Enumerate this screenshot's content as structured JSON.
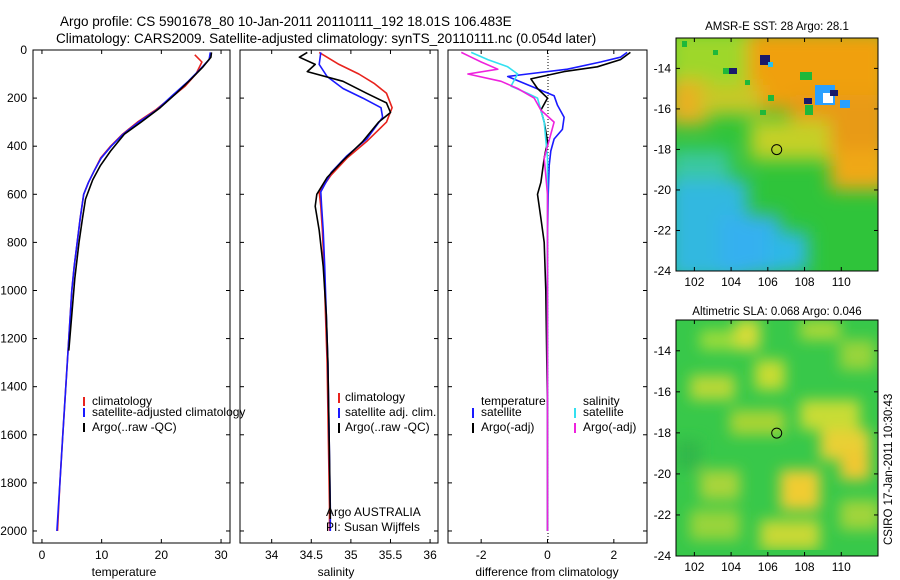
{
  "figure": {
    "title_line1": "Argo profile: CS 5901678_80 10-Jan-2011 20110111_192 18.01S 106.483E",
    "title_line2": "Climatology: CARS2009. Satellite-adjusted climatology: synTS_20110111.nc (0.054d later)",
    "side_label": "CSIRO 17-Jan-2011 10:30:43",
    "argo_credit_line1": "Argo AUSTRALIA",
    "argo_credit_line2": "PI: Susan Wijffels"
  },
  "colors": {
    "climatology": "#e8231d",
    "satellite": "#1a1aff",
    "argo": "#000000",
    "sal_satellite": "#33e0f0",
    "sal_argo": "#ee22dd"
  },
  "chart_data": [
    {
      "type": "line",
      "id": "temperature",
      "xlabel": "temperature",
      "xlim": [
        -1.5,
        31.5
      ],
      "xticks": [
        0,
        10,
        20,
        30
      ],
      "ylim": [
        2050,
        0
      ],
      "yticks": [
        0,
        200,
        400,
        600,
        800,
        1000,
        1200,
        1400,
        1600,
        1800,
        2000
      ],
      "legend": [
        "climatology",
        "satellite-adjusted climatology",
        "Argo(..raw -QC)"
      ],
      "legend_placement": "lower-right",
      "series": [
        {
          "name": "climatology",
          "color_key": "climatology",
          "points": [
            [
              25.6,
              20
            ],
            [
              26.8,
              50
            ],
            [
              25.8,
              100
            ],
            [
              24.0,
              150
            ],
            [
              21.5,
              200
            ],
            [
              19.0,
              250
            ],
            [
              16.0,
              300
            ],
            [
              13.5,
              350
            ],
            [
              11.5,
              400
            ],
            [
              9.8,
              450
            ],
            [
              8.8,
              500
            ],
            [
              7.8,
              550
            ],
            [
              7.0,
              600
            ],
            [
              6.4,
              700
            ],
            [
              5.9,
              800
            ],
            [
              5.4,
              900
            ],
            [
              5.0,
              1000
            ],
            [
              4.5,
              1200
            ],
            [
              4.0,
              1400
            ],
            [
              3.5,
              1600
            ],
            [
              3.0,
              1800
            ],
            [
              2.6,
              2000
            ]
          ]
        },
        {
          "name": "satellite-adjusted climatology",
          "color_key": "satellite",
          "points": [
            [
              28.2,
              10
            ],
            [
              28.0,
              40
            ],
            [
              26.5,
              80
            ],
            [
              24.5,
              130
            ],
            [
              21.8,
              190
            ],
            [
              19.2,
              250
            ],
            [
              16.2,
              300
            ],
            [
              13.6,
              350
            ],
            [
              11.6,
              400
            ],
            [
              9.9,
              450
            ],
            [
              8.8,
              500
            ],
            [
              7.8,
              550
            ],
            [
              7.0,
              600
            ],
            [
              6.4,
              700
            ],
            [
              5.9,
              800
            ],
            [
              5.4,
              900
            ],
            [
              5.0,
              1000
            ],
            [
              4.5,
              1200
            ],
            [
              4.0,
              1400
            ],
            [
              3.5,
              1600
            ],
            [
              3.0,
              1800
            ],
            [
              2.5,
              2000
            ]
          ]
        },
        {
          "name": "Argo(..raw -QC)",
          "color_key": "argo",
          "points": [
            [
              28.4,
              10
            ],
            [
              28.3,
              30
            ],
            [
              27.0,
              70
            ],
            [
              25.0,
              120
            ],
            [
              22.5,
              180
            ],
            [
              19.8,
              240
            ],
            [
              16.6,
              300
            ],
            [
              13.8,
              350
            ],
            [
              11.5,
              420
            ],
            [
              9.8,
              480
            ],
            [
              8.5,
              540
            ],
            [
              7.3,
              620
            ],
            [
              6.8,
              700
            ],
            [
              6.2,
              800
            ],
            [
              5.5,
              950
            ],
            [
              5.0,
              1100
            ],
            [
              4.5,
              1250
            ]
          ]
        }
      ]
    },
    {
      "type": "line",
      "id": "salinity",
      "xlabel": "salinity",
      "xlim": [
        33.6,
        36.1
      ],
      "xticks": [
        34,
        34.5,
        35,
        35.5,
        36
      ],
      "ylim": [
        2050,
        0
      ],
      "legend": [
        "climatology",
        "satellite adj. clim.",
        "Argo(..raw -QC)"
      ],
      "legend_placement": "lower-right",
      "series": [
        {
          "name": "climatology",
          "color_key": "climatology",
          "points": [
            [
              34.6,
              10
            ],
            [
              34.85,
              60
            ],
            [
              35.1,
              100
            ],
            [
              35.3,
              140
            ],
            [
              35.45,
              180
            ],
            [
              35.52,
              240
            ],
            [
              35.45,
              300
            ],
            [
              35.2,
              380
            ],
            [
              34.95,
              450
            ],
            [
              34.75,
              520
            ],
            [
              34.6,
              590
            ],
            [
              34.62,
              650
            ],
            [
              34.64,
              750
            ],
            [
              34.66,
              900
            ],
            [
              34.68,
              1100
            ],
            [
              34.7,
              1300
            ],
            [
              34.71,
              1500
            ],
            [
              34.72,
              1700
            ],
            [
              34.73,
              1900
            ],
            [
              34.73,
              2000
            ]
          ]
        },
        {
          "name": "satellite adj. clim.",
          "color_key": "satellite",
          "points": [
            [
              34.62,
              10
            ],
            [
              34.6,
              60
            ],
            [
              34.7,
              110
            ],
            [
              34.9,
              160
            ],
            [
              35.15,
              200
            ],
            [
              35.38,
              240
            ],
            [
              35.4,
              280
            ],
            [
              35.2,
              370
            ],
            [
              34.95,
              440
            ],
            [
              34.75,
              510
            ],
            [
              34.62,
              590
            ],
            [
              34.63,
              650
            ],
            [
              34.65,
              750
            ],
            [
              34.67,
              900
            ],
            [
              34.69,
              1100
            ],
            [
              34.71,
              1300
            ],
            [
              34.72,
              1500
            ],
            [
              34.73,
              1700
            ],
            [
              34.74,
              1900
            ],
            [
              34.74,
              2000
            ]
          ]
        },
        {
          "name": "Argo(..raw -QC)",
          "color_key": "argo",
          "points": [
            [
              34.45,
              10
            ],
            [
              34.35,
              30
            ],
            [
              34.55,
              60
            ],
            [
              34.45,
              90
            ],
            [
              34.9,
              130
            ],
            [
              35.2,
              180
            ],
            [
              35.45,
              220
            ],
            [
              35.5,
              260
            ],
            [
              35.35,
              300
            ],
            [
              35.15,
              380
            ],
            [
              34.9,
              460
            ],
            [
              34.7,
              530
            ],
            [
              34.57,
              600
            ],
            [
              34.55,
              650
            ],
            [
              34.6,
              750
            ],
            [
              34.65,
              900
            ],
            [
              34.69,
              1100
            ],
            [
              34.71,
              1300
            ],
            [
              34.72,
              1500
            ],
            [
              34.73,
              1700
            ],
            [
              34.74,
              1950
            ]
          ]
        }
      ]
    },
    {
      "type": "line",
      "id": "difference",
      "xlabel": "difference from climatology",
      "xlim": [
        -3.0,
        3.0
      ],
      "xticks": [
        -2,
        0,
        2
      ],
      "ylim": [
        2050,
        0
      ],
      "zero_line": true,
      "legend_headers": [
        "temperature",
        "salinity"
      ],
      "legend": [
        "satellite",
        "Argo(-adj)",
        "satellite",
        "Argo(-adj)"
      ],
      "legend_placement": "lower-center",
      "series": [
        {
          "name": "temperature satellite",
          "color_key": "satellite",
          "points": [
            [
              2.4,
              10
            ],
            [
              2.2,
              30
            ],
            [
              1.6,
              50
            ],
            [
              0.6,
              80
            ],
            [
              -0.6,
              100
            ],
            [
              -1.2,
              110
            ],
            [
              -0.5,
              150
            ],
            [
              0.2,
              190
            ],
            [
              0.3,
              230
            ],
            [
              0.5,
              280
            ],
            [
              0.45,
              330
            ],
            [
              0.2,
              370
            ],
            [
              0.1,
              420
            ],
            [
              0.05,
              480
            ],
            [
              0.02,
              600
            ],
            [
              0.0,
              800
            ],
            [
              0.0,
              1000
            ],
            [
              0.0,
              1500
            ],
            [
              0.0,
              2000
            ]
          ]
        },
        {
          "name": "temperature Argo(-adj)",
          "color_key": "argo",
          "points": [
            [
              2.5,
              10
            ],
            [
              2.2,
              40
            ],
            [
              1.5,
              70
            ],
            [
              0.5,
              90
            ],
            [
              -0.5,
              120
            ],
            [
              -0.3,
              160
            ],
            [
              0.0,
              200
            ],
            [
              -0.2,
              250
            ],
            [
              -0.1,
              300
            ],
            [
              0.0,
              380
            ],
            [
              -0.1,
              450
            ],
            [
              -0.2,
              550
            ],
            [
              -0.3,
              600
            ],
            [
              -0.2,
              700
            ],
            [
              -0.1,
              800
            ],
            [
              -0.05,
              1000
            ],
            [
              0.0,
              1500
            ],
            [
              0.0,
              2000
            ]
          ]
        },
        {
          "name": "salinity satellite",
          "color_key": "sal_satellite",
          "points": [
            [
              -2.3,
              10
            ],
            [
              -1.8,
              40
            ],
            [
              -1.2,
              70
            ],
            [
              -0.9,
              100
            ],
            [
              -1.1,
              150
            ],
            [
              -0.6,
              180
            ],
            [
              -0.3,
              200
            ],
            [
              -0.1,
              300
            ],
            [
              0.0,
              450
            ],
            [
              0.0,
              800
            ],
            [
              0.0,
              1200
            ],
            [
              0.0,
              2000
            ]
          ]
        },
        {
          "name": "salinity Argo(-adj)",
          "color_key": "sal_argo",
          "points": [
            [
              -2.6,
              10
            ],
            [
              -2.3,
              30
            ],
            [
              -2.0,
              50
            ],
            [
              -1.5,
              80
            ],
            [
              -2.4,
              100
            ],
            [
              -1.4,
              130
            ],
            [
              -0.9,
              160
            ],
            [
              -0.4,
              200
            ],
            [
              -0.2,
              250
            ],
            [
              0.2,
              300
            ],
            [
              0.1,
              350
            ],
            [
              -0.1,
              450
            ],
            [
              0.0,
              600
            ],
            [
              0.0,
              900
            ],
            [
              0.0,
              1200
            ],
            [
              0.0,
              2000
            ]
          ]
        }
      ]
    },
    {
      "type": "heatmap",
      "id": "sst-map",
      "title": "AMSR-E SST: 28 Argo: 28.1",
      "xlim": [
        101,
        112
      ],
      "ylim": [
        -24,
        -12.5
      ],
      "xticks": [
        102,
        104,
        106,
        108,
        110
      ],
      "yticks": [
        -24,
        -22,
        -20,
        -18,
        -16,
        -14
      ],
      "marker": [
        106.483,
        -18.01
      ]
    },
    {
      "type": "heatmap",
      "id": "sla-map",
      "title": "Altimetric SLA: 0.068 Argo: 0.046",
      "xlim": [
        101,
        112
      ],
      "ylim": [
        -24,
        -12.5
      ],
      "xticks": [
        102,
        104,
        106,
        108,
        110
      ],
      "yticks": [
        -24,
        -22,
        -20,
        -18,
        -16,
        -14
      ],
      "marker": [
        106.483,
        -18.01
      ]
    }
  ]
}
